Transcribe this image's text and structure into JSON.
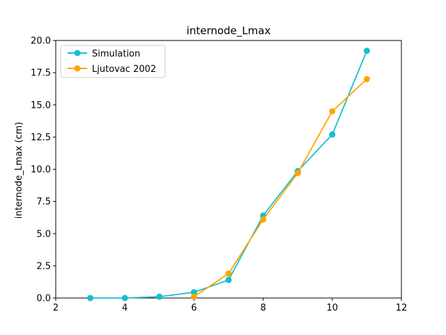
{
  "chart_data": {
    "type": "line",
    "title": "internode_Lmax",
    "xlabel": "",
    "ylabel": "internode_Lmax (cm)",
    "xlim": [
      2,
      12
    ],
    "ylim": [
      0,
      20
    ],
    "xticks": [
      2,
      4,
      6,
      8,
      10,
      12
    ],
    "yticks": [
      0.0,
      2.5,
      5.0,
      7.5,
      10.0,
      12.5,
      15.0,
      17.5,
      20.0
    ],
    "xtick_labels": [
      "2",
      "4",
      "6",
      "8",
      "10",
      "12"
    ],
    "ytick_labels": [
      "0.0",
      "2.5",
      "5.0",
      "7.5",
      "10.0",
      "12.5",
      "15.0",
      "17.5",
      "20.0"
    ],
    "grid": false,
    "legend_position": "top-left",
    "series": [
      {
        "name": "Simulation",
        "color": "#17becf",
        "marker": "circle",
        "x": [
          3,
          4,
          5,
          6,
          7,
          8,
          9,
          10,
          11
        ],
        "y": [
          0.0,
          0.0,
          0.1,
          0.45,
          1.4,
          6.4,
          9.85,
          12.7,
          19.2
        ]
      },
      {
        "name": "Ljutovac 2002",
        "color": "#ffa500",
        "marker": "circle",
        "x": [
          6,
          7,
          8,
          9,
          10,
          11
        ],
        "y": [
          0.1,
          1.9,
          6.1,
          9.7,
          14.5,
          17.0
        ]
      }
    ]
  }
}
